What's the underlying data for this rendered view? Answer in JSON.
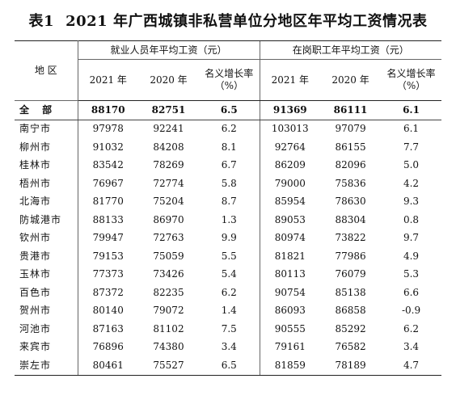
{
  "title": {
    "number": "表1",
    "text": "2021 年广西城镇非私营单位分地区年平均工资情况表"
  },
  "header": {
    "region": "地  区",
    "employed_group": "就业人员年平均工资（元）",
    "onpost_group": "在岗职工年平均工资（元）",
    "col_2021": "2021 年",
    "col_2020": "2020 年",
    "rate_line1": "名义增长率",
    "rate_line2": "（%）"
  },
  "rows": [
    [
      "全 部",
      "88170",
      "82751",
      "6.5",
      "91369",
      "86111",
      "6.1"
    ],
    [
      "南宁市",
      "97978",
      "92241",
      "6.2",
      "103013",
      "97079",
      "6.1"
    ],
    [
      "柳州市",
      "91032",
      "84208",
      "8.1",
      "92764",
      "86155",
      "7.7"
    ],
    [
      "桂林市",
      "83542",
      "78269",
      "6.7",
      "86209",
      "82096",
      "5.0"
    ],
    [
      "梧州市",
      "76967",
      "72774",
      "5.8",
      "79000",
      "75836",
      "4.2"
    ],
    [
      "北海市",
      "81770",
      "75204",
      "8.7",
      "85954",
      "78630",
      "9.3"
    ],
    [
      "防城港市",
      "88133",
      "86970",
      "1.3",
      "89053",
      "88304",
      "0.8"
    ],
    [
      "钦州市",
      "79947",
      "72763",
      "9.9",
      "80974",
      "73822",
      "9.7"
    ],
    [
      "贵港市",
      "79153",
      "75059",
      "5.5",
      "81821",
      "77986",
      "4.9"
    ],
    [
      "玉林市",
      "77373",
      "73426",
      "5.4",
      "80113",
      "76079",
      "5.3"
    ],
    [
      "百色市",
      "87372",
      "82235",
      "6.2",
      "90754",
      "85138",
      "6.6"
    ],
    [
      "贺州市",
      "80140",
      "79072",
      "1.4",
      "86093",
      "86858",
      "-0.9"
    ],
    [
      "河池市",
      "87163",
      "81102",
      "7.5",
      "90555",
      "85292",
      "6.2"
    ],
    [
      "来宾市",
      "76896",
      "74380",
      "3.4",
      "79161",
      "76582",
      "3.4"
    ],
    [
      "崇左市",
      "80461",
      "75527",
      "6.5",
      "81859",
      "78189",
      "4.7"
    ]
  ]
}
